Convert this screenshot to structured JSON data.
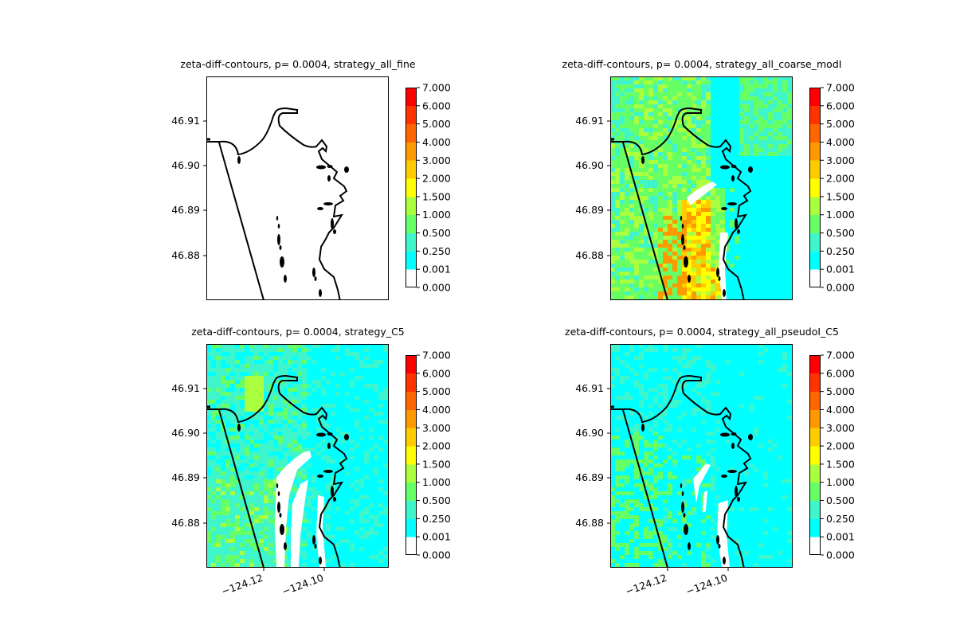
{
  "chart_data": [
    {
      "type": "heatmap",
      "title": "zeta-diff-contours, p= 0.0004, strategy_all_fine",
      "fill": "none",
      "yticks": [
        "46.91",
        "46.90",
        "46.89",
        "46.88"
      ],
      "xticks": [],
      "colorbar_ticks": [
        "7.000",
        "6.000",
        "5.000",
        "4.000",
        "3.000",
        "2.000",
        "1.500",
        "1.000",
        "0.500",
        "0.250",
        "0.001",
        "0.000"
      ]
    },
    {
      "type": "heatmap",
      "title": "zeta-diff-contours, p= 0.0004, strategy_all_coarse_modI",
      "fill": "coarse",
      "yticks": [
        "46.91",
        "46.90",
        "46.89",
        "46.88"
      ],
      "xticks": [],
      "colorbar_ticks": [
        "7.000",
        "6.000",
        "5.000",
        "4.000",
        "3.000",
        "2.000",
        "1.500",
        "1.000",
        "0.500",
        "0.250",
        "0.001",
        "0.000"
      ]
    },
    {
      "type": "heatmap",
      "title": "zeta-diff-contours, p= 0.0004, strategy_C5",
      "fill": "c5",
      "yticks": [
        "46.91",
        "46.90",
        "46.89",
        "46.88"
      ],
      "xticks": [
        "−124.12",
        "−124.10"
      ],
      "colorbar_ticks": [
        "7.000",
        "6.000",
        "5.000",
        "4.000",
        "3.000",
        "2.000",
        "1.500",
        "1.000",
        "0.500",
        "0.250",
        "0.001",
        "0.000"
      ]
    },
    {
      "type": "heatmap",
      "title": "zeta-diff-contours, p= 0.0004, strategy_all_pseudoI_C5",
      "fill": "pseudo",
      "yticks": [
        "46.91",
        "46.90",
        "46.89",
        "46.88"
      ],
      "xticks": [
        "−124.12",
        "−124.10"
      ],
      "colorbar_ticks": [
        "7.000",
        "6.000",
        "5.000",
        "4.000",
        "3.000",
        "2.000",
        "1.500",
        "1.000",
        "0.500",
        "0.250",
        "0.001",
        "0.000"
      ]
    }
  ],
  "colors": {
    "levels": [
      "#ffffff",
      "#00ffff",
      "#3ff5cc",
      "#66ff66",
      "#aaff3e",
      "#ffff00",
      "#ffcc00",
      "#ff9900",
      "#ff6600",
      "#ff3300",
      "#ff0000"
    ],
    "coastline": "#000000"
  }
}
